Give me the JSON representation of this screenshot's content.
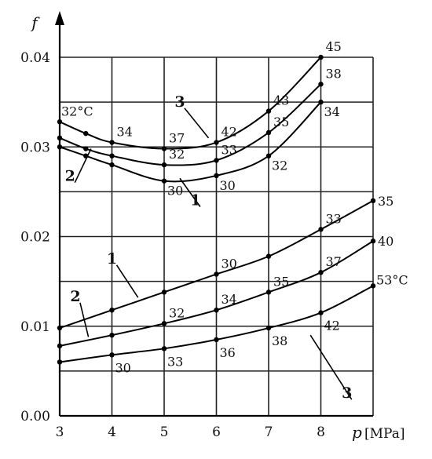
{
  "chart_data": {
    "type": "line",
    "ylabel": "f",
    "xlabel_symbol": "p",
    "xlabel_unit": "[MPa]",
    "xlim": [
      3,
      8.6
    ],
    "ylim": [
      0,
      0.042
    ],
    "x_ticks": [
      "3",
      "4",
      "5",
      "6",
      "7",
      "8"
    ],
    "y_ticks": [
      "0.00",
      "0.01",
      "0.02",
      "0.03",
      "0.04"
    ],
    "grid": true,
    "groups": [
      {
        "name": "upper",
        "series": [
          {
            "curve": "3",
            "x": [
              3,
              3.5,
              4,
              5,
              6,
              7,
              8
            ],
            "y": [
              0.0328,
              0.0315,
              0.0305,
              0.0298,
              0.0305,
              0.034,
              0.04
            ],
            "labels": [
              {
                "x": 3,
                "text": "32°C"
              },
              {
                "x": 4,
                "text": "34"
              },
              {
                "x": 5,
                "text": "37"
              },
              {
                "x": 6,
                "text": "42"
              },
              {
                "x": 7,
                "text": "43"
              },
              {
                "x": 8,
                "text": "45"
              }
            ]
          },
          {
            "curve": "2",
            "x": [
              3,
              3.5,
              4,
              5,
              6,
              7,
              8
            ],
            "y": [
              0.031,
              0.0298,
              0.029,
              0.028,
              0.0285,
              0.0316,
              0.037
            ],
            "labels": [
              {
                "x": 5,
                "text": "32"
              },
              {
                "x": 6,
                "text": "33"
              },
              {
                "x": 7,
                "text": "35"
              },
              {
                "x": 8,
                "text": "38"
              }
            ]
          },
          {
            "curve": "1",
            "x": [
              3,
              3.5,
              4,
              5,
              6,
              7,
              8
            ],
            "y": [
              0.03,
              0.029,
              0.028,
              0.0262,
              0.0268,
              0.029,
              0.035
            ],
            "labels": [
              {
                "x": 5,
                "text": "30"
              },
              {
                "x": 6,
                "text": "30"
              },
              {
                "x": 7,
                "text": "32"
              },
              {
                "x": 8,
                "text": "34"
              }
            ]
          }
        ]
      },
      {
        "name": "lower",
        "series": [
          {
            "curve": "1",
            "x": [
              3,
              4,
              5,
              6,
              7,
              8,
              9
            ],
            "y": [
              0.0098,
              0.0118,
              0.0138,
              0.0158,
              0.0178,
              0.0208,
              0.024
            ],
            "labels": [
              {
                "x": 6,
                "text": "30"
              },
              {
                "x": 8,
                "text": "33"
              },
              {
                "x": 9,
                "text": "35"
              }
            ]
          },
          {
            "curve": "2",
            "x": [
              3,
              4,
              5,
              6,
              7,
              8,
              9
            ],
            "y": [
              0.0078,
              0.009,
              0.0103,
              0.0118,
              0.0138,
              0.016,
              0.0195
            ],
            "labels": [
              {
                "x": 5,
                "text": "32"
              },
              {
                "x": 6,
                "text": "34"
              },
              {
                "x": 7,
                "text": "35"
              },
              {
                "x": 8,
                "text": "37"
              },
              {
                "x": 9,
                "text": "40"
              }
            ]
          },
          {
            "curve": "3",
            "x": [
              3,
              4,
              5,
              6,
              7,
              8,
              9
            ],
            "y": [
              0.006,
              0.0068,
              0.0075,
              0.0085,
              0.0098,
              0.0115,
              0.0145
            ],
            "labels": [
              {
                "x": 4,
                "text": "30"
              },
              {
                "x": 5,
                "text": "33"
              },
              {
                "x": 6,
                "text": "36"
              },
              {
                "x": 7,
                "text": "38"
              },
              {
                "x": 8,
                "text": "42"
              },
              {
                "x": 9,
                "text": "53°C"
              }
            ]
          }
        ]
      }
    ],
    "curve_labels": [
      {
        "text": "3",
        "x": 5.3,
        "y": 0.0345,
        "to_x": 5.85,
        "to_y": 0.031
      },
      {
        "text": "2",
        "x": 3.2,
        "y": 0.0262,
        "to_x": 3.6,
        "to_y": 0.0298
      },
      {
        "text": "1",
        "x": 5.6,
        "y": 0.0235,
        "to_x": 5.3,
        "to_y": 0.0265
      },
      {
        "text": "1",
        "x": 4.0,
        "y": 0.017,
        "to_x": 4.5,
        "to_y": 0.0132
      },
      {
        "text": "2",
        "x": 3.3,
        "y": 0.0128,
        "to_x": 3.55,
        "to_y": 0.0088
      },
      {
        "text": "3",
        "x": 8.5,
        "y": 0.002,
        "to_x": 7.8,
        "to_y": 0.009
      }
    ]
  }
}
